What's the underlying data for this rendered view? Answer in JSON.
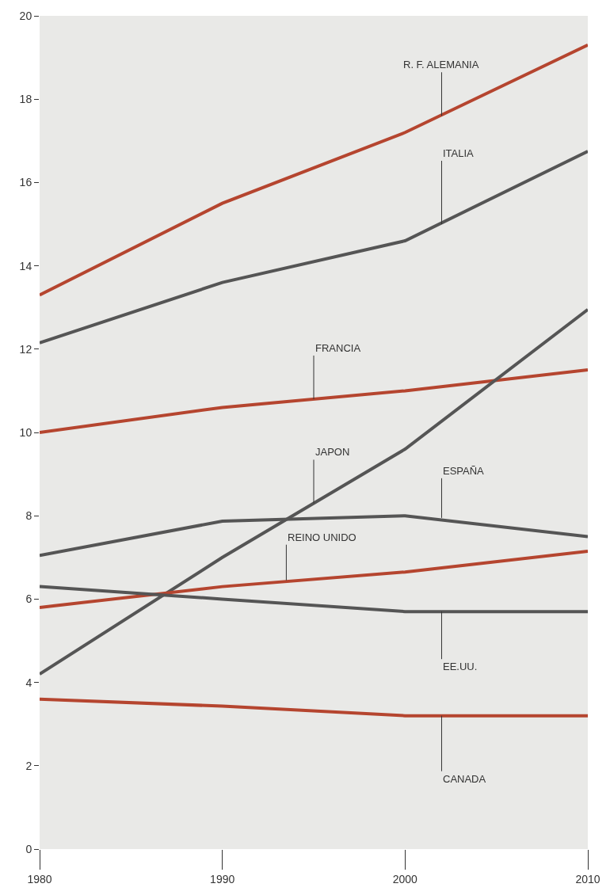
{
  "chart_data": {
    "type": "line",
    "x": [
      1980,
      1990,
      2000,
      2010
    ],
    "series": [
      {
        "color": "#b5452f",
        "values": [
          13.3,
          15.5,
          17.2,
          19.3
        ]
      },
      {
        "color": "#555555",
        "values": [
          12.15,
          13.6,
          14.6,
          16.75
        ]
      },
      {
        "color": "#b5452f",
        "values": [
          10.0,
          10.6,
          11.0,
          11.5
        ]
      },
      {
        "color": "#555555",
        "values": [
          4.2,
          7.0,
          9.6,
          12.95
        ]
      },
      {
        "color": "#555555",
        "values": [
          7.05,
          7.87,
          8.0,
          7.5
        ]
      },
      {
        "color": "#b5452f",
        "values": [
          5.8,
          6.3,
          6.65,
          7.15
        ]
      },
      {
        "color": "#555555",
        "values": [
          6.3,
          6.0,
          5.7,
          5.7
        ]
      },
      {
        "color": "#b5452f",
        "values": [
          3.6,
          3.43,
          3.2,
          3.2
        ]
      }
    ],
    "annotations": [
      {
        "text": "R. F. ALEMANIA",
        "x": 2002,
        "y": 17.6
      },
      {
        "text": "ITALIA",
        "x": 2002,
        "y": 15.0
      },
      {
        "text": "FRANCIA",
        "x": 1995,
        "y": 10.8
      },
      {
        "text": "JAPON",
        "x": 1995,
        "y": 8.3
      },
      {
        "text": "ESPAÑA",
        "x": 2002,
        "y": 7.95
      },
      {
        "text": "REINO UNIDO",
        "x": 1993.5,
        "y": 6.45
      },
      {
        "text": "EE.UU.",
        "x": 2002,
        "y": 5.7
      },
      {
        "text": "CANADA",
        "x": 2002,
        "y": 3.2
      }
    ],
    "xlim": [
      1980,
      2010
    ],
    "xticks": [
      1980,
      1990,
      2000,
      2010
    ],
    "ylim": [
      0,
      20
    ],
    "yticks": [
      0,
      2,
      4,
      6,
      8,
      10,
      12,
      14,
      16,
      18,
      20
    ],
    "grid": false
  }
}
